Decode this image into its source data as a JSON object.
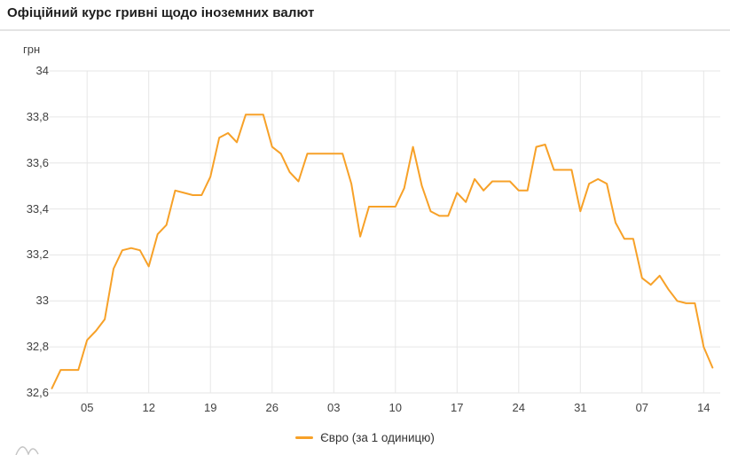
{
  "header": {
    "title": "Офіційний курс гривні щодо іноземних валют"
  },
  "chart_data": {
    "type": "line",
    "title": "Офіційний курс гривні щодо іноземних валют",
    "y_axis_title": "грн",
    "ylim": [
      32.6,
      34
    ],
    "grid": true,
    "legend_position": "bottom",
    "y_ticks": [
      32.6,
      32.8,
      33,
      33.2,
      33.4,
      33.6,
      33.8,
      34
    ],
    "y_tick_labels": [
      "32,6",
      "32,8",
      "33",
      "33,2",
      "33,4",
      "33,6",
      "33,8",
      "34"
    ],
    "x_tick_labels": [
      "05",
      "12",
      "19",
      "26",
      "03",
      "10",
      "17",
      "24",
      "31",
      "07",
      "14"
    ],
    "x_tick_indices": [
      4,
      11,
      18,
      25,
      32,
      39,
      46,
      53,
      60,
      67,
      74
    ],
    "series": [
      {
        "name": "Євро (за 1 одиницю)",
        "color": "#f7a128",
        "values": [
          32.62,
          32.7,
          32.7,
          32.7,
          32.83,
          32.87,
          32.92,
          33.14,
          33.22,
          33.23,
          33.22,
          33.15,
          33.29,
          33.33,
          33.48,
          33.47,
          33.46,
          33.46,
          33.54,
          33.71,
          33.73,
          33.69,
          33.81,
          33.81,
          33.81,
          33.67,
          33.64,
          33.56,
          33.52,
          33.64,
          33.64,
          33.64,
          33.64,
          33.64,
          33.51,
          33.28,
          33.41,
          33.41,
          33.41,
          33.41,
          33.49,
          33.67,
          33.5,
          33.39,
          33.37,
          33.37,
          33.47,
          33.43,
          33.53,
          33.48,
          33.52,
          33.52,
          33.52,
          33.48,
          33.48,
          33.67,
          33.68,
          33.57,
          33.57,
          33.57,
          33.39,
          33.51,
          33.53,
          33.51,
          33.34,
          33.27,
          33.27,
          33.1,
          33.07,
          33.11,
          33.05,
          33.0,
          32.99,
          32.99,
          32.8,
          32.71
        ]
      }
    ]
  },
  "legend": {
    "items": [
      {
        "label": "Євро (за 1 одиницю)",
        "color": "#f7a128"
      }
    ]
  },
  "colors": {
    "line": "#f7a128",
    "grid": "#e6e6e6",
    "tick_text": "#424242",
    "title_text": "#1d1d1d",
    "divider": "#e4e4e4",
    "decoration": "#c4c4c4"
  }
}
